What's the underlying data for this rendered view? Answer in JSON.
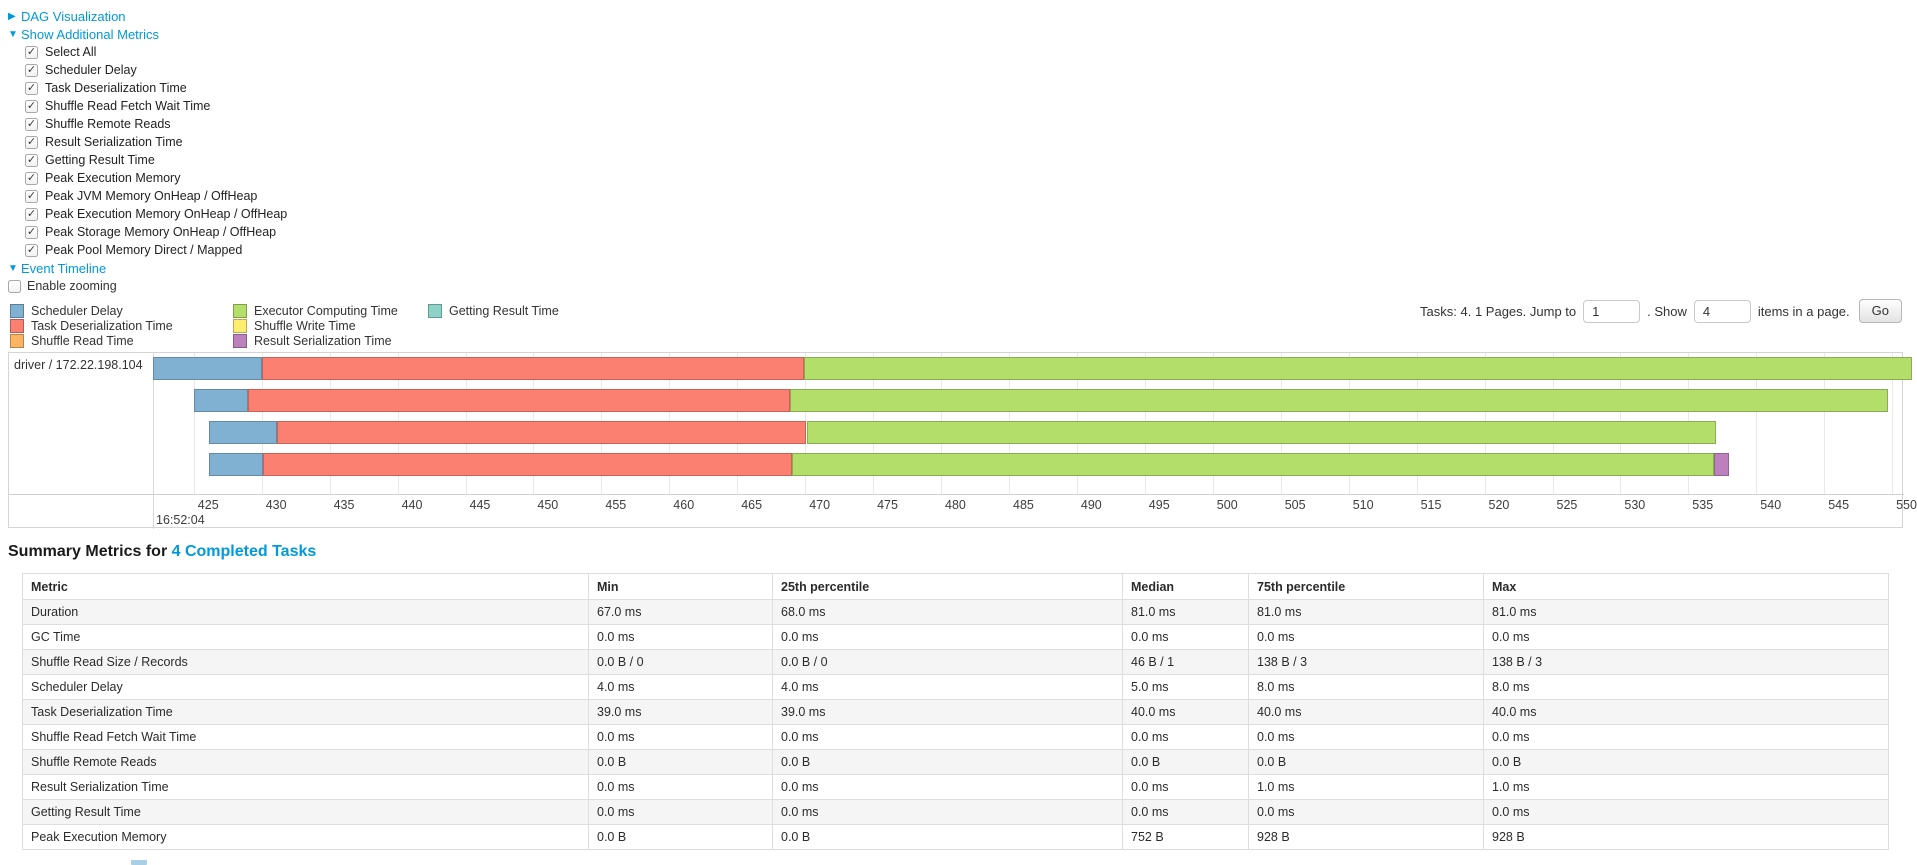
{
  "controls": {
    "dag": {
      "label": "DAG Visualization",
      "arrow": "▶"
    },
    "metrics_toggle": {
      "label": "Show Additional Metrics",
      "arrow": "▼"
    },
    "metric_checkboxes": [
      {
        "label": "Select All",
        "checked": true
      },
      {
        "label": "Scheduler Delay",
        "checked": true
      },
      {
        "label": "Task Deserialization Time",
        "checked": true
      },
      {
        "label": "Shuffle Read Fetch Wait Time",
        "checked": true
      },
      {
        "label": "Shuffle Remote Reads",
        "checked": true
      },
      {
        "label": "Result Serialization Time",
        "checked": true
      },
      {
        "label": "Getting Result Time",
        "checked": true
      },
      {
        "label": "Peak Execution Memory",
        "checked": true
      },
      {
        "label": "Peak JVM Memory OnHeap / OffHeap",
        "checked": true
      },
      {
        "label": "Peak Execution Memory OnHeap / OffHeap",
        "checked": true
      },
      {
        "label": "Peak Storage Memory OnHeap / OffHeap",
        "checked": true
      },
      {
        "label": "Peak Pool Memory Direct / Mapped",
        "checked": true
      }
    ],
    "event_timeline": {
      "label": "Event Timeline",
      "arrow": "▼"
    },
    "enable_zooming": {
      "label": "Enable zooming",
      "checked": false
    }
  },
  "legend": {
    "items": [
      {
        "label": "Scheduler Delay",
        "color_key": "scheduler_delay"
      },
      {
        "label": "Task Deserialization Time",
        "color_key": "task_deserialization"
      },
      {
        "label": "Shuffle Read Time",
        "color_key": "shuffle_read"
      },
      {
        "label": "Executor Computing Time",
        "color_key": "executor_computing"
      },
      {
        "label": "Shuffle Write Time",
        "color_key": "shuffle_write"
      },
      {
        "label": "Result Serialization Time",
        "color_key": "result_serialization"
      },
      {
        "label": "Getting Result Time",
        "color_key": "getting_result"
      }
    ]
  },
  "pagination": {
    "text_before": "Tasks: 4. 1 Pages. Jump to",
    "jump_value": "1",
    "text_mid": ". Show",
    "show_value": "4",
    "text_after": "items in a page.",
    "go_label": "Go"
  },
  "colors": {
    "link": "#0099dd",
    "scheduler_delay": "#80B1D3",
    "task_deserialization": "#FB8072",
    "shuffle_read": "#FDB462",
    "executor_computing": "#B3DE69",
    "shuffle_write": "#FFED6F",
    "result_serialization": "#BC80BD",
    "getting_result": "#8DD3C7"
  },
  "chart_data": {
    "type": "timeline-gantt",
    "row_label": "driver / 172.22.198.104",
    "major_time_label": "16:52:04",
    "axis_unit": "ms within 16:52:04",
    "domain_ms": [
      422.0,
      550.8
    ],
    "ticks_ms": [
      425,
      430,
      435,
      440,
      445,
      450,
      455,
      460,
      465,
      470,
      475,
      480,
      485,
      490,
      495,
      500,
      505,
      510,
      515,
      520,
      525,
      530,
      535,
      540,
      545,
      550
    ],
    "tasks": [
      {
        "segments": [
          {
            "type": "scheduler_delay",
            "start": 422.0,
            "end": 430.0
          },
          {
            "type": "task_deserialization",
            "start": 430.0,
            "end": 469.9
          },
          {
            "type": "executor_computing",
            "start": 469.9,
            "end": 551.5
          }
        ]
      },
      {
        "segments": [
          {
            "type": "scheduler_delay",
            "start": 425.0,
            "end": 429.0
          },
          {
            "type": "task_deserialization",
            "start": 429.0,
            "end": 468.9
          },
          {
            "type": "executor_computing",
            "start": 468.9,
            "end": 549.7
          }
        ]
      },
      {
        "segments": [
          {
            "type": "scheduler_delay",
            "start": 426.1,
            "end": 431.1
          },
          {
            "type": "task_deserialization",
            "start": 431.1,
            "end": 470.1
          },
          {
            "type": "executor_computing",
            "start": 470.1,
            "end": 537.0
          }
        ]
      },
      {
        "segments": [
          {
            "type": "scheduler_delay",
            "start": 426.1,
            "end": 430.1
          },
          {
            "type": "task_deserialization",
            "start": 430.1,
            "end": 469.0
          },
          {
            "type": "executor_computing",
            "start": 469.0,
            "end": 536.9
          },
          {
            "type": "result_serialization",
            "start": 536.9,
            "end": 538.0
          }
        ]
      }
    ]
  },
  "summary": {
    "title_prefix": "Summary Metrics for",
    "title_link": "4 Completed Tasks",
    "table": {
      "headers": [
        "Metric",
        "Min",
        "25th percentile",
        "Median",
        "75th percentile",
        "Max"
      ],
      "rows": [
        [
          "Duration",
          "67.0 ms",
          "68.0 ms",
          "81.0 ms",
          "81.0 ms",
          "81.0 ms"
        ],
        [
          "GC Time",
          "0.0 ms",
          "0.0 ms",
          "0.0 ms",
          "0.0 ms",
          "0.0 ms"
        ],
        [
          "Shuffle Read Size / Records",
          "0.0 B / 0",
          "0.0 B / 0",
          "46 B / 1",
          "138 B / 3",
          "138 B / 3"
        ],
        [
          "Scheduler Delay",
          "4.0 ms",
          "4.0 ms",
          "5.0 ms",
          "8.0 ms",
          "8.0 ms"
        ],
        [
          "Task Deserialization Time",
          "39.0 ms",
          "39.0 ms",
          "40.0 ms",
          "40.0 ms",
          "40.0 ms"
        ],
        [
          "Shuffle Read Fetch Wait Time",
          "0.0 ms",
          "0.0 ms",
          "0.0 ms",
          "0.0 ms",
          "0.0 ms"
        ],
        [
          "Shuffle Remote Reads",
          "0.0 B",
          "0.0 B",
          "0.0 B",
          "0.0 B",
          "0.0 B"
        ],
        [
          "Result Serialization Time",
          "0.0 ms",
          "0.0 ms",
          "0.0 ms",
          "1.0 ms",
          "1.0 ms"
        ],
        [
          "Getting Result Time",
          "0.0 ms",
          "0.0 ms",
          "0.0 ms",
          "0.0 ms",
          "0.0 ms"
        ],
        [
          "Peak Execution Memory",
          "0.0 B",
          "0.0 B",
          "752 B",
          "928 B",
          "928 B"
        ]
      ]
    }
  }
}
